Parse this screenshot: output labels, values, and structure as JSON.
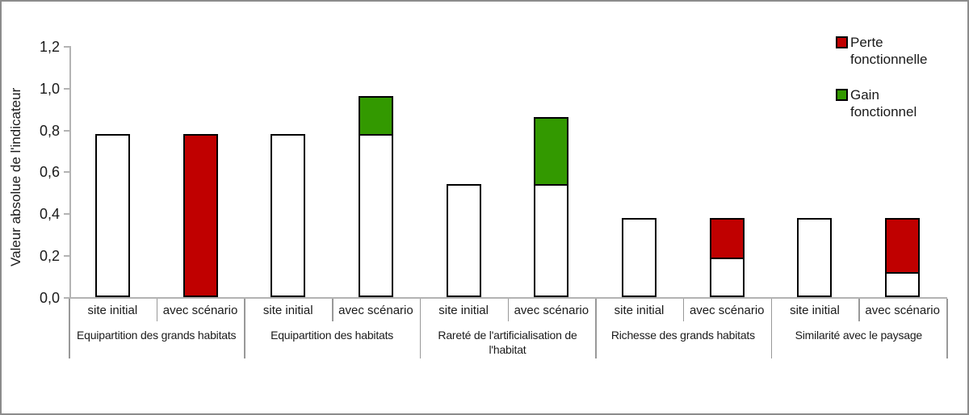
{
  "chart_data": {
    "type": "bar",
    "subtype": "stacked-grouped",
    "title": "",
    "ylabel": "Valeur absolue de l'indicateur",
    "xlabel": "",
    "ylim": [
      0,
      1.2
    ],
    "ytick_step": 0.2,
    "ytick_labels": [
      "0,0",
      "0,2",
      "0,4",
      "0,6",
      "0,8",
      "1,0",
      "1,2"
    ],
    "grid": false,
    "legend_position": "top-right",
    "legend": [
      {
        "id": "perte",
        "label": "Perte fonctionnelle",
        "color": "#c00000"
      },
      {
        "id": "gain",
        "label": "Gain fonctionnel",
        "color": "#339900"
      }
    ],
    "colors": {
      "initial": "#ffffff",
      "perte": "#c00000",
      "gain": "#339900",
      "bar_border": "#000000",
      "axis": "#b3b3b3",
      "separator": "#999999",
      "text": "#1a1a1a"
    },
    "groups": [
      {
        "label": "Equipartition des grands habitats",
        "wrap": false,
        "bars": [
          {
            "category": "site initial",
            "segments": [
              {
                "type": "initial",
                "value": 0.78
              }
            ]
          },
          {
            "category": "avec scénario",
            "segments": [
              {
                "type": "perte",
                "value": 0.78
              }
            ]
          }
        ]
      },
      {
        "label": "Equipartition des habitats",
        "wrap": false,
        "bars": [
          {
            "category": "site initial",
            "segments": [
              {
                "type": "initial",
                "value": 0.78
              }
            ]
          },
          {
            "category": "avec scénario",
            "segments": [
              {
                "type": "initial",
                "value": 0.78
              },
              {
                "type": "gain",
                "value": 0.18
              }
            ]
          }
        ]
      },
      {
        "label": "Rareté de l'artificialisation de l'habitat",
        "wrap": true,
        "bars": [
          {
            "category": "site initial",
            "segments": [
              {
                "type": "initial",
                "value": 0.54
              }
            ]
          },
          {
            "category": "avec scénario",
            "segments": [
              {
                "type": "initial",
                "value": 0.54
              },
              {
                "type": "gain",
                "value": 0.32
              }
            ]
          }
        ]
      },
      {
        "label": "Richesse des grands habitats",
        "wrap": false,
        "bars": [
          {
            "category": "site initial",
            "segments": [
              {
                "type": "initial",
                "value": 0.38
              }
            ]
          },
          {
            "category": "avec scénario",
            "segments": [
              {
                "type": "initial",
                "value": 0.19
              },
              {
                "type": "perte",
                "value": 0.19
              }
            ]
          }
        ]
      },
      {
        "label": "Similarité avec le paysage",
        "wrap": false,
        "bars": [
          {
            "category": "site initial",
            "segments": [
              {
                "type": "initial",
                "value": 0.38
              }
            ]
          },
          {
            "category": "avec scénario",
            "segments": [
              {
                "type": "initial",
                "value": 0.12
              },
              {
                "type": "perte",
                "value": 0.26
              }
            ]
          }
        ]
      }
    ]
  }
}
